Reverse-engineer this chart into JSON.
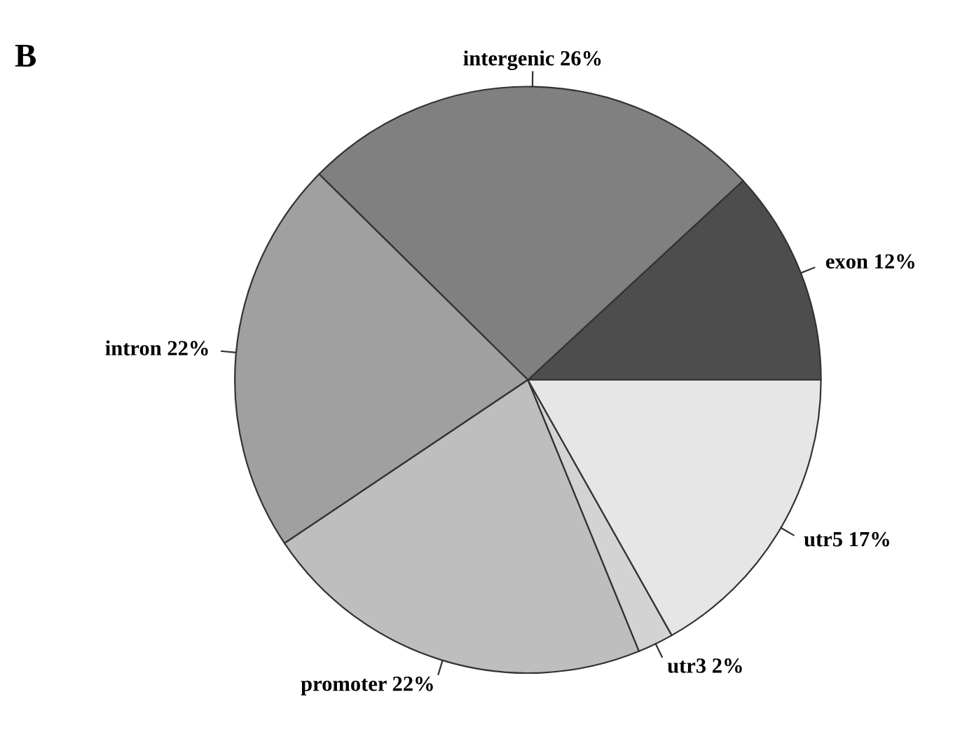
{
  "chart_data": {
    "type": "pie",
    "categories": [
      "exon",
      "intergenic",
      "intron",
      "promoter",
      "utr3",
      "utr5"
    ],
    "values": [
      12,
      26,
      22,
      22,
      2,
      17
    ],
    "value_labels": [
      "12%",
      "26%",
      "22%",
      "22%",
      "2%",
      "17%"
    ],
    "colors": [
      "#4d4d4d",
      "#808080",
      "#a0a0a0",
      "#bebebe",
      "#d3d3d3",
      "#e6e6e6"
    ],
    "annotations": [
      "B"
    ],
    "legend": false
  }
}
